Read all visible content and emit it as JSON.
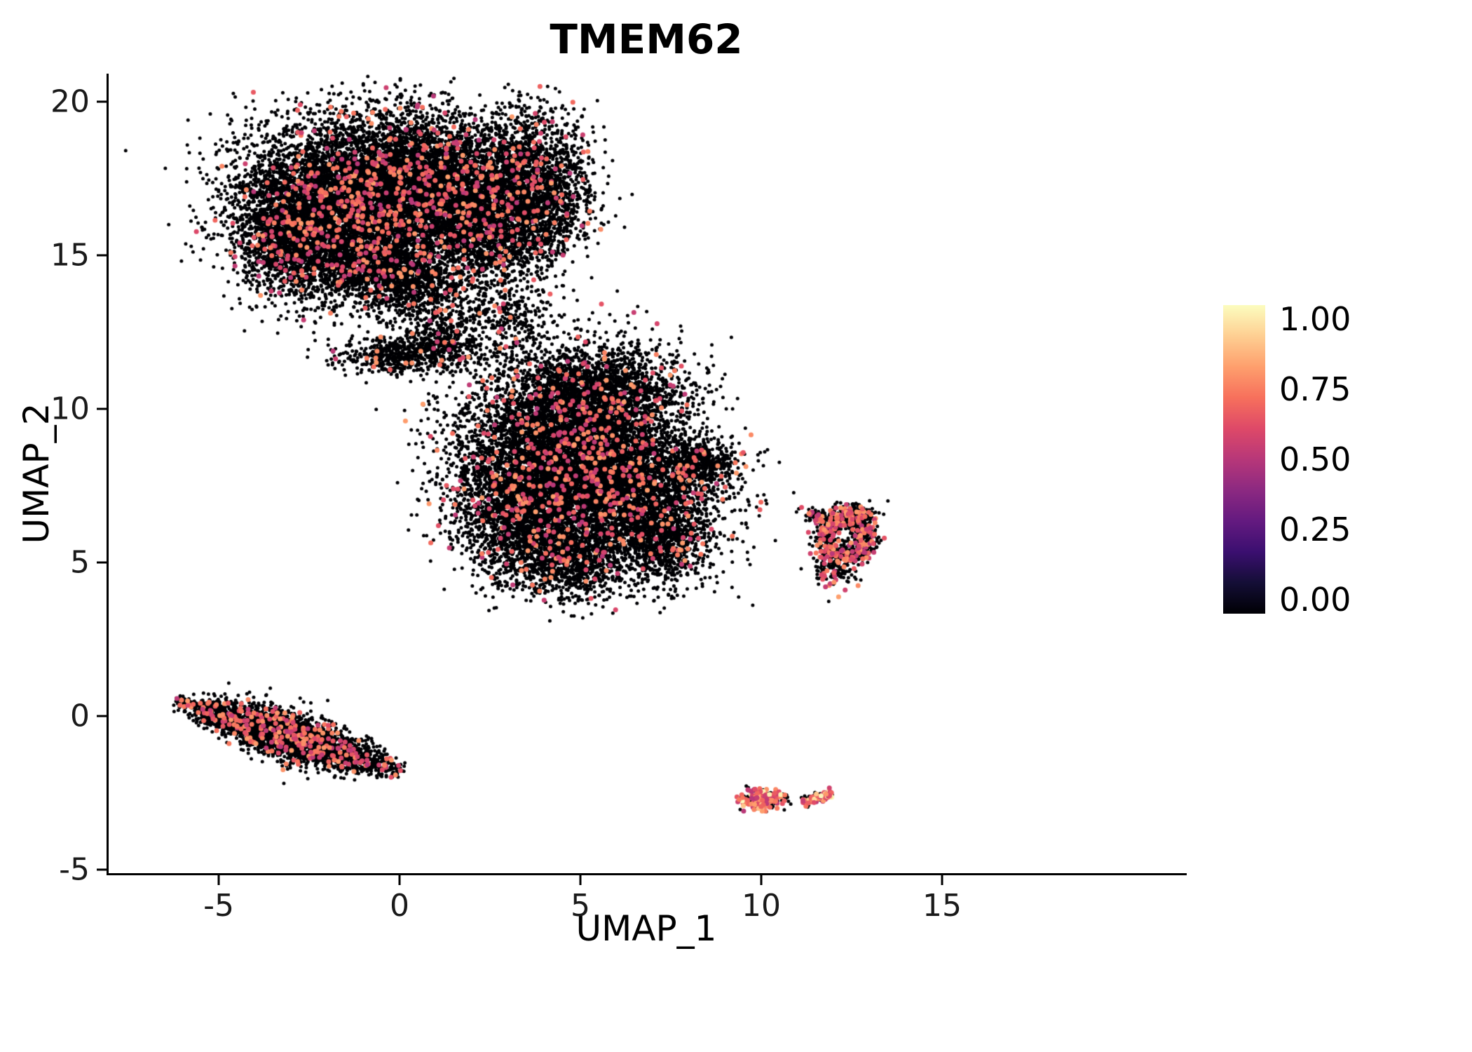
{
  "chart_data": {
    "type": "scatter",
    "title": "TMEM62",
    "xlabel": "UMAP_1",
    "ylabel": "UMAP_2",
    "xlim": [
      -8.1,
      21.7
    ],
    "ylim": [
      -5.1,
      20.9
    ],
    "grid": false,
    "x_ticks": {
      "values": [
        -5,
        0,
        5,
        10,
        15
      ],
      "labels": [
        "-5",
        "0",
        "5",
        "10",
        "15"
      ]
    },
    "y_ticks": {
      "values": [
        20,
        15,
        10,
        5,
        0,
        -5
      ],
      "labels": [
        "20",
        "15",
        "10",
        "5",
        "0",
        "-5"
      ]
    },
    "legend": {
      "type": "colorbar",
      "position": "right",
      "colormap": "magma",
      "tick_values": [
        1,
        0.75,
        0.5,
        0.25,
        0
      ],
      "tick_labels": [
        "1.00",
        "0.75",
        "0.50",
        "0.25",
        "0.00"
      ],
      "stops": [
        {
          "v": 0,
          "color": "#000004"
        },
        {
          "v": 0.1,
          "color": "#140e36"
        },
        {
          "v": 0.2,
          "color": "#3b0f70"
        },
        {
          "v": 0.3,
          "color": "#641a80"
        },
        {
          "v": 0.4,
          "color": "#8c2981"
        },
        {
          "v": 0.5,
          "color": "#b73779"
        },
        {
          "v": 0.6,
          "color": "#de4968"
        },
        {
          "v": 0.7,
          "color": "#f7705c"
        },
        {
          "v": 0.8,
          "color": "#fe9f6d"
        },
        {
          "v": 0.9,
          "color": "#fecf92"
        },
        {
          "v": 1,
          "color": "#fcfdbf"
        }
      ]
    },
    "expression_value_range": [
      0.5,
      0.8
    ],
    "bright_value_range": [
      0.85,
      1.0
    ],
    "zero_expression_color": "#000004",
    "clusters": [
      {
        "type": "gauss",
        "cx": -1.9,
        "cy": 16.6,
        "sx": 1.35,
        "sy": 1.35,
        "n": 5200,
        "expr_frac": 0.05
      },
      {
        "type": "gauss",
        "cx": 0.6,
        "cy": 17.6,
        "sx": 1.35,
        "sy": 1.05,
        "n": 3800,
        "expr_frac": 0.05
      },
      {
        "type": "gauss",
        "cx": 2.2,
        "cy": 16.2,
        "sx": 1.1,
        "sy": 1.2,
        "n": 2600,
        "expr_frac": 0.05
      },
      {
        "type": "gauss",
        "cx": 3.7,
        "cy": 17.2,
        "sx": 0.8,
        "sy": 1.25,
        "n": 1800,
        "expr_frac": 0.05
      },
      {
        "type": "gauss",
        "cx": -3.0,
        "cy": 15.6,
        "sx": 0.7,
        "sy": 0.9,
        "n": 1200,
        "expr_frac": 0.05
      },
      {
        "type": "gauss",
        "cx": -0.6,
        "cy": 14.7,
        "sx": 1.0,
        "sy": 0.7,
        "n": 1300,
        "expr_frac": 0.04
      },
      {
        "type": "gauss",
        "cx": 0.5,
        "cy": 13.9,
        "sx": 0.7,
        "sy": 0.5,
        "n": 500,
        "expr_frac": 0.04
      },
      {
        "type": "gauss",
        "cx": 0.1,
        "cy": 11.75,
        "sx": 0.85,
        "sy": 0.3,
        "n": 550,
        "expr_frac": 0.03
      },
      {
        "type": "gauss",
        "cx": 1.1,
        "cy": 12.4,
        "sx": 0.5,
        "sy": 0.4,
        "n": 250,
        "expr_frac": 0.03
      },
      {
        "type": "gauss",
        "cx": 2.2,
        "cy": 12.3,
        "sx": 0.9,
        "sy": 0.7,
        "n": 200,
        "expr_frac": 0.02
      },
      {
        "type": "gauss",
        "cx": 3.1,
        "cy": 13.0,
        "sx": 0.5,
        "sy": 0.5,
        "n": 160,
        "expr_frac": 0.02
      },
      {
        "type": "gauss",
        "cx": 4.6,
        "cy": 8.8,
        "sx": 1.5,
        "sy": 1.4,
        "n": 5200,
        "expr_frac": 0.05
      },
      {
        "type": "gauss",
        "cx": 6.2,
        "cy": 7.2,
        "sx": 1.3,
        "sy": 1.2,
        "n": 3600,
        "expr_frac": 0.05
      },
      {
        "type": "gauss",
        "cx": 3.3,
        "cy": 6.8,
        "sx": 0.9,
        "sy": 1.1,
        "n": 1900,
        "expr_frac": 0.05
      },
      {
        "type": "gauss",
        "cx": 5.6,
        "cy": 10.6,
        "sx": 1.2,
        "sy": 0.75,
        "n": 1500,
        "expr_frac": 0.05
      },
      {
        "type": "gauss",
        "cx": 4.6,
        "cy": 5.0,
        "sx": 0.9,
        "sy": 0.6,
        "n": 1000,
        "expr_frac": 0.05
      },
      {
        "type": "gauss",
        "cx": 8.2,
        "cy": 8.2,
        "sx": 0.55,
        "sy": 0.35,
        "n": 450,
        "expr_frac": 0.04
      },
      {
        "type": "gauss",
        "cx": 7.4,
        "cy": 5.6,
        "sx": 0.6,
        "sy": 0.6,
        "n": 600,
        "expr_frac": 0.05
      },
      {
        "type": "gauss",
        "cx": 7.7,
        "cy": 4.0,
        "sx": 0.25,
        "sy": 0.15,
        "n": 8,
        "expr_frac": 0
      },
      {
        "type": "ring",
        "cx": 12.35,
        "cy": 5.85,
        "r": 0.62,
        "ry": 1.05,
        "w": 0.18,
        "n": 700,
        "expr_frac": 0.22
      },
      {
        "type": "gauss",
        "cx": 12.55,
        "cy": 6.55,
        "sx": 0.28,
        "sy": 0.22,
        "n": 120,
        "expr_frac": 0.22
      },
      {
        "type": "gauss",
        "cx": 12.0,
        "cy": 4.85,
        "sx": 0.3,
        "sy": 0.35,
        "n": 150,
        "expr_frac": 0.22
      },
      {
        "type": "gauss",
        "cx": 11.45,
        "cy": 6.55,
        "sx": 0.18,
        "sy": 0.12,
        "n": 50,
        "expr_frac": 0.15
      },
      {
        "type": "line",
        "x1": -6.35,
        "y1": 0.55,
        "x2": 0.25,
        "y2": -1.85,
        "w": 0.25,
        "n": 3000,
        "expr_frac": 0.1,
        "taper": true
      },
      {
        "type": "gauss",
        "cx": 10.0,
        "cy": -2.72,
        "sx": 0.28,
        "sy": 0.16,
        "n": 260,
        "expr_frac": 0.45,
        "bright_frac": 0.05
      },
      {
        "type": "line",
        "x1": 11.15,
        "y1": -2.8,
        "x2": 11.95,
        "y2": -2.5,
        "w": 0.07,
        "n": 170,
        "expr_frac": 0.4,
        "bright_frac": 0.08
      },
      {
        "type": "gauss",
        "cx": 10.65,
        "cy": -2.6,
        "sx": 0.06,
        "sy": 0.04,
        "n": 12,
        "expr_frac": 0.2
      },
      {
        "type": "gauss",
        "cx": 9.55,
        "cy": -2.65,
        "sx": 0.05,
        "sy": 0.04,
        "n": 6,
        "expr_frac": 0.15
      }
    ]
  }
}
